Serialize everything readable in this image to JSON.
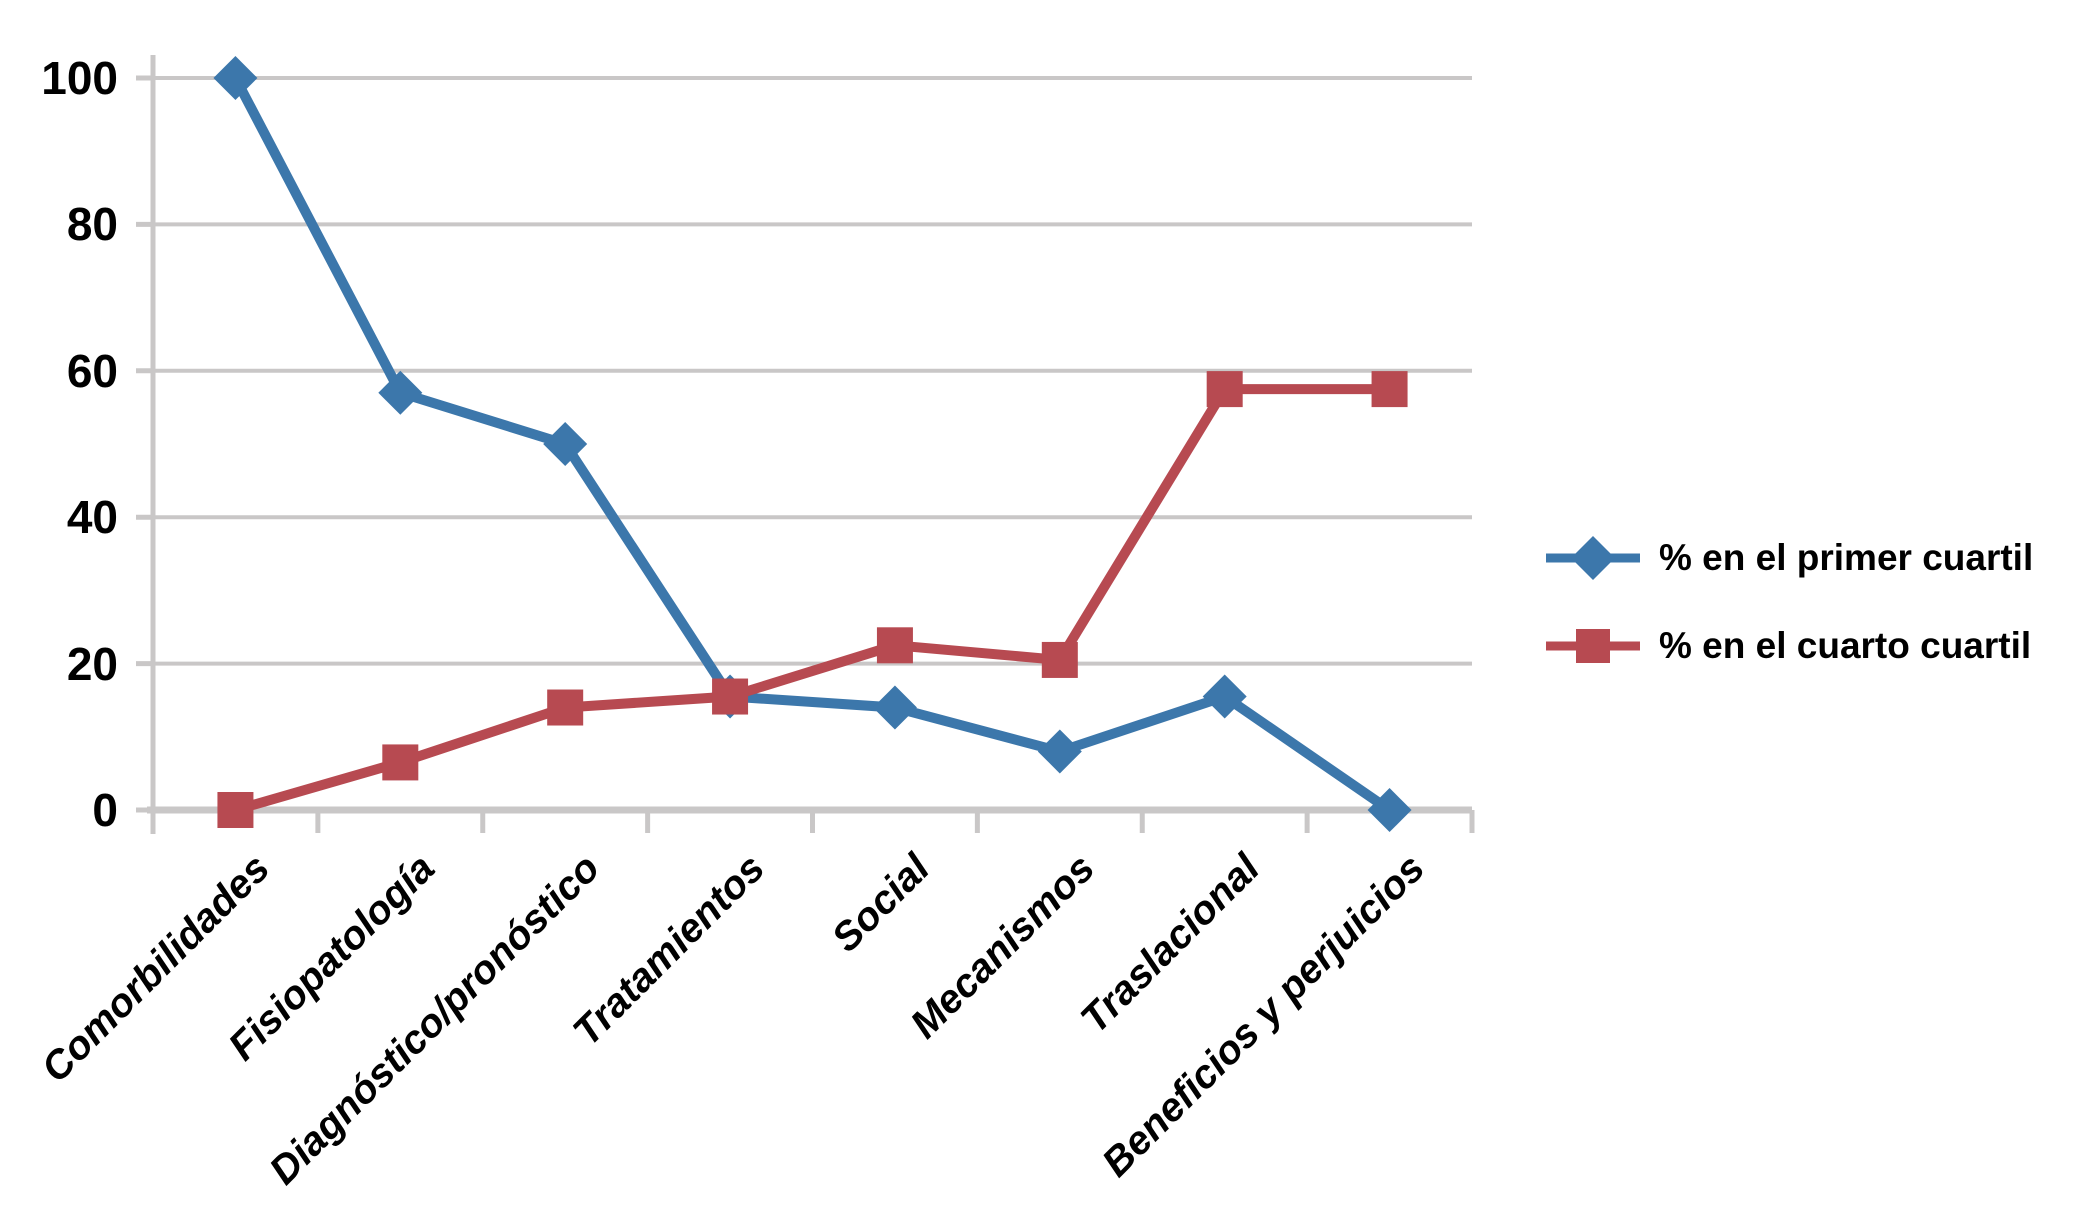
{
  "chart_data": {
    "type": "line",
    "title": "",
    "xlabel": "",
    "ylabel": "",
    "categories": [
      "Comorbilidades",
      "Fisiopatología",
      "Diagnóstico/pronóstico",
      "Tratamientos",
      "Social",
      "Mecanismos",
      "Traslacional",
      "Beneficios y perjuicios"
    ],
    "series": [
      {
        "name": "% en el primer cuartil",
        "marker": "diamond",
        "color": "#3C77AB",
        "values": [
          100,
          57,
          50,
          15.5,
          14,
          8,
          15.5,
          0
        ]
      },
      {
        "name": "% en el cuarto cuartil",
        "marker": "square",
        "color": "#B74A51",
        "values": [
          0,
          6.5,
          14,
          15.5,
          22.5,
          20.5,
          57.5,
          57.5
        ]
      }
    ],
    "ylim": [
      0,
      100
    ],
    "yticks": [
      0,
      20,
      40,
      60,
      80,
      100
    ],
    "grid": true,
    "legend_position": "right",
    "axis_color": "#C9C7C7",
    "label_color": "#000000",
    "background": "#FFFFFF"
  }
}
